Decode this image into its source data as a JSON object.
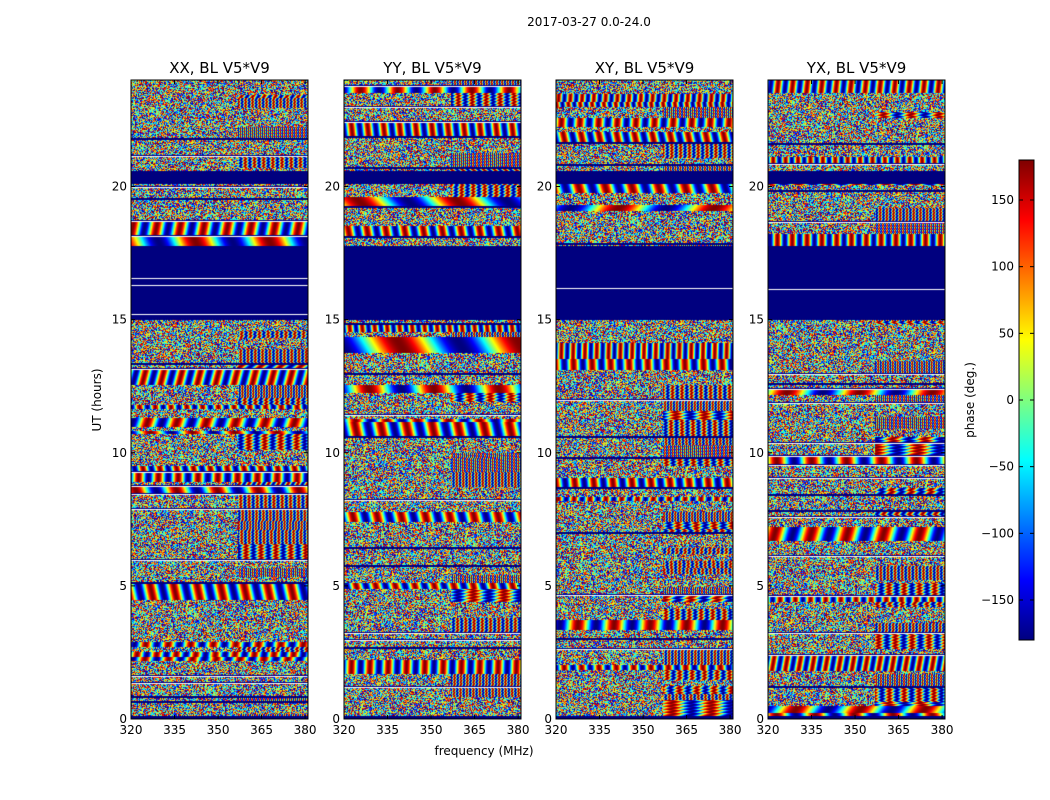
{
  "chart_data": {
    "type": "heatmap",
    "suptitle": "2017-03-27 0.0-24.0",
    "xlabel": "frequency (MHz)",
    "ylabel": "UT (hours)",
    "xlim": [
      320,
      381
    ],
    "ylim": [
      0,
      24
    ],
    "xticks": [
      320,
      335,
      350,
      365,
      380
    ],
    "yticks": [
      0,
      5,
      10,
      15,
      20
    ],
    "colorbar": {
      "label": "phase (deg.)",
      "range": [
        -180,
        180
      ],
      "ticks": [
        150,
        100,
        50,
        0,
        -50,
        -100,
        -150
      ],
      "colormap": "jet"
    },
    "panels": [
      {
        "title": "XX, BL V5*V9"
      },
      {
        "title": "YY, BL V5*V9"
      },
      {
        "title": "XY, BL V5*V9"
      },
      {
        "title": "YX, BL V5*V9"
      }
    ],
    "gap_bands_hours": [
      [
        15.0,
        17.8
      ],
      [
        20.1,
        20.6
      ],
      [
        0.0,
        0.15
      ]
    ],
    "colors": {
      "flagged": "#00007f",
      "jet_stops": [
        "#00007f",
        "#0000ff",
        "#007fff",
        "#00ffff",
        "#7fff7f",
        "#ffff00",
        "#ff7f00",
        "#ff0000",
        "#7f0000"
      ]
    }
  }
}
